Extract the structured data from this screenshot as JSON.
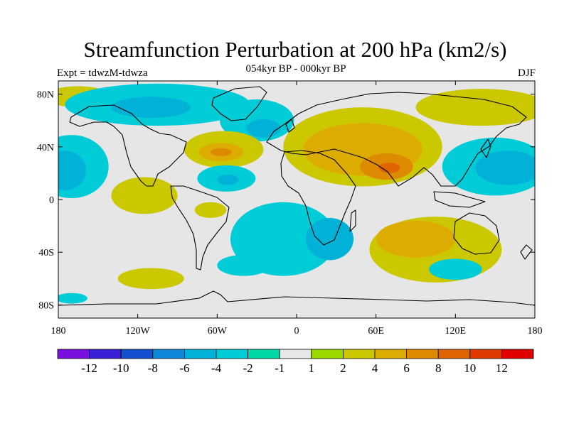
{
  "header": {
    "title": "Streamfunction Perturbation at 200 hPa (km2/s)",
    "subtitle": "054kyr BP - 000kyr BP",
    "left_label": "Expt = tdwzM-tdwza",
    "right_label": "DJF"
  },
  "map": {
    "projection": "cylindrical-equidistant",
    "lon_range": [
      -180,
      180
    ],
    "lat_range": [
      -90,
      90
    ],
    "lat_ticks": [
      {
        "value": 80,
        "label": "80N"
      },
      {
        "value": 40,
        "label": "40N"
      },
      {
        "value": 0,
        "label": "0"
      },
      {
        "value": -40,
        "label": "40S"
      },
      {
        "value": -80,
        "label": "80S"
      }
    ],
    "lon_ticks": [
      {
        "value": -180,
        "label": "180"
      },
      {
        "value": -120,
        "label": "120W"
      },
      {
        "value": -60,
        "label": "60W"
      },
      {
        "value": 0,
        "label": "0"
      },
      {
        "value": 60,
        "label": "60E"
      },
      {
        "value": 120,
        "label": "120E"
      },
      {
        "value": 180,
        "label": "180"
      }
    ],
    "background_color": "#e6e6e6",
    "regions": [
      {
        "level": 2,
        "lon": -165,
        "lat": 78,
        "rx": 25,
        "ry": 8
      },
      {
        "level": -2,
        "lon": -105,
        "lat": 72,
        "rx": 70,
        "ry": 16
      },
      {
        "level": -4,
        "lon": -110,
        "lat": 70,
        "rx": 30,
        "ry": 8
      },
      {
        "level": -2,
        "lon": -30,
        "lat": 60,
        "rx": 28,
        "ry": 16
      },
      {
        "level": -4,
        "lon": -25,
        "lat": 54,
        "rx": 13,
        "ry": 7
      },
      {
        "level": 2,
        "lon": -55,
        "lat": 38,
        "rx": 30,
        "ry": 14
      },
      {
        "level": 4,
        "lon": -57,
        "lat": 36,
        "rx": 17,
        "ry": 7
      },
      {
        "level": 6,
        "lon": -57,
        "lat": 36,
        "rx": 8,
        "ry": 3
      },
      {
        "level": -2,
        "lon": -170,
        "lat": 25,
        "rx": 28,
        "ry": 24
      },
      {
        "level": -4,
        "lon": -175,
        "lat": 22,
        "rx": 16,
        "ry": 15
      },
      {
        "level": -2,
        "lon": -53,
        "lat": 16,
        "rx": 22,
        "ry": 10
      },
      {
        "level": -4,
        "lon": -52,
        "lat": 15,
        "rx": 8,
        "ry": 4
      },
      {
        "level": 2,
        "lon": -115,
        "lat": 3,
        "rx": 25,
        "ry": 14
      },
      {
        "level": 2,
        "lon": -65,
        "lat": -8,
        "rx": 12,
        "ry": 6
      },
      {
        "level": 2,
        "lon": 50,
        "lat": 40,
        "rx": 60,
        "ry": 30
      },
      {
        "level": 4,
        "lon": 50,
        "lat": 38,
        "rx": 45,
        "ry": 20
      },
      {
        "level": 6,
        "lon": 68,
        "lat": 25,
        "rx": 20,
        "ry": 10
      },
      {
        "level": 8,
        "lon": 70,
        "lat": 24,
        "rx": 8,
        "ry": 4
      },
      {
        "level": 2,
        "lon": 140,
        "lat": 70,
        "rx": 50,
        "ry": 14
      },
      {
        "level": -2,
        "lon": 150,
        "lat": 25,
        "rx": 40,
        "ry": 22
      },
      {
        "level": -4,
        "lon": 160,
        "lat": 24,
        "rx": 25,
        "ry": 13
      },
      {
        "level": -2,
        "lon": -10,
        "lat": -30,
        "rx": 40,
        "ry": 28
      },
      {
        "level": -4,
        "lon": 25,
        "lat": -30,
        "rx": 18,
        "ry": 16
      },
      {
        "level": -2,
        "lon": -40,
        "lat": -50,
        "rx": 20,
        "ry": 8
      },
      {
        "level": 2,
        "lon": 105,
        "lat": -38,
        "rx": 50,
        "ry": 25
      },
      {
        "level": 4,
        "lon": 90,
        "lat": -30,
        "rx": 30,
        "ry": 14
      },
      {
        "level": -2,
        "lon": 120,
        "lat": -53,
        "rx": 20,
        "ry": 8
      },
      {
        "level": 2,
        "lon": -110,
        "lat": -60,
        "rx": 25,
        "ry": 8
      },
      {
        "level": -2,
        "lon": -170,
        "lat": -75,
        "rx": 12,
        "ry": 4
      }
    ]
  },
  "colorbar": {
    "colors": [
      "#7a10e0",
      "#3a20d8",
      "#1450d0",
      "#0e88d8",
      "#00b2d8",
      "#00ccd8",
      "#00d8a6",
      "#e8e8e8",
      "#9ad800",
      "#ccc800",
      "#dcac00",
      "#de8a00",
      "#e06400",
      "#e03a00",
      "#e00000"
    ],
    "labels": [
      "-12",
      "-10",
      "-8",
      "-6",
      "-4",
      "-2",
      "-1",
      "1",
      "2",
      "4",
      "6",
      "8",
      "10",
      "12"
    ]
  }
}
